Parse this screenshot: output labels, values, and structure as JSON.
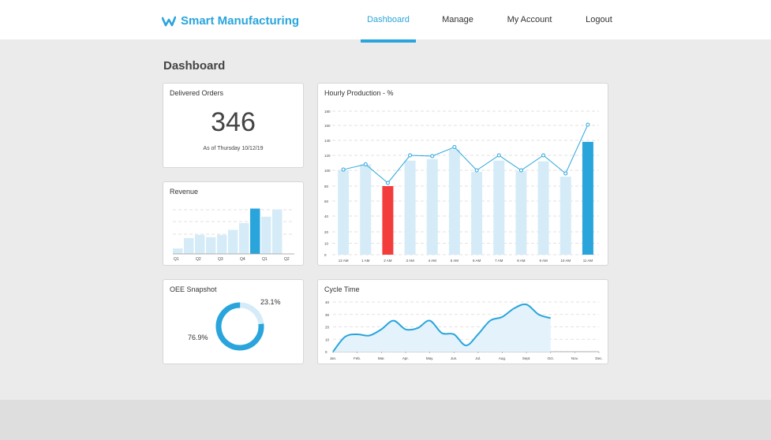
{
  "header": {
    "brand_title": "Smart Manufacturing",
    "nav": [
      {
        "label": "Dashboard",
        "active": true
      },
      {
        "label": "Manage",
        "active": false
      },
      {
        "label": "My Account",
        "active": false
      },
      {
        "label": "Logout",
        "active": false
      }
    ],
    "accent_color": "#29a5dc"
  },
  "page_title": "Dashboard",
  "delivered_orders": {
    "title": "Delivered Orders",
    "value": "346",
    "subtext": "As of Thursday 10/12/19"
  },
  "revenue": {
    "title": "Revenue"
  },
  "oee": {
    "title": "OEE Snapshot",
    "pct_a": "23.1%",
    "pct_b": "76.9%"
  },
  "hourly": {
    "title": "Hourly Production - %"
  },
  "cycle": {
    "title": "Cycle Time"
  },
  "chart_data": [
    {
      "type": "bar",
      "chart_id": "revenue",
      "title": "Revenue",
      "categories": [
        "Q1",
        "",
        "Q2",
        "",
        "Q3",
        "",
        "Q4",
        "",
        "Q1",
        "",
        "Q2"
      ],
      "x_tick_labels": [
        "Q1",
        "Q2",
        "Q3",
        "Q4",
        "Q1",
        "Q2"
      ],
      "values": [
        12,
        35,
        42,
        37,
        42,
        53,
        68,
        100,
        82,
        98,
        0
      ],
      "highlight_index": 7,
      "ylim": [
        0,
        120
      ],
      "grid": true
    },
    {
      "type": "bar",
      "chart_id": "hourly",
      "title": "Hourly Production - %",
      "categories": [
        "12 AM",
        "1 AM",
        "2 AM",
        "3 AM",
        "4 AM",
        "5 AM",
        "6 AM",
        "7 AM",
        "8 AM",
        "9 AM",
        "10 AM",
        "11 AM"
      ],
      "values": [
        100,
        108,
        80,
        113,
        115,
        128,
        98,
        113,
        99,
        112,
        92,
        138
      ],
      "line_values": [
        101,
        108,
        84,
        120,
        119,
        131,
        100,
        120,
        100,
        120,
        96,
        161
      ],
      "highlight_low_index": 2,
      "highlight_high_index": 11,
      "yticks": [
        0,
        10,
        20,
        40,
        60,
        80,
        100,
        120,
        140,
        160,
        180
      ],
      "ylim": [
        0,
        180
      ],
      "grid": true
    },
    {
      "type": "area",
      "chart_id": "cycle",
      "title": "Cycle Time",
      "categories": [
        "Jan.",
        "Feb.",
        "Mar.",
        "Apr.",
        "May.",
        "Jun.",
        "Jul.",
        "Aug.",
        "Sept.",
        "Oct.",
        "Nov.",
        "Dec."
      ],
      "x": [
        0,
        0.5,
        1,
        1.5,
        2,
        2.5,
        3,
        3.5,
        4,
        4.5,
        5,
        5.5,
        6,
        6.5,
        7,
        7.5,
        8,
        8.5,
        9
      ],
      "values": [
        0,
        12,
        14,
        13,
        18,
        25,
        18,
        19,
        25,
        15,
        14,
        5,
        14,
        25,
        28,
        35,
        38,
        30,
        27
      ],
      "yticks": [
        0,
        10,
        20,
        30,
        40
      ],
      "ylim": [
        0,
        40
      ],
      "grid": true
    },
    {
      "type": "pie",
      "chart_id": "oee",
      "title": "OEE Snapshot",
      "labels": [
        "23.1%",
        "76.9%"
      ],
      "values": [
        23.1,
        76.9
      ],
      "colors": [
        "#d5ecf8",
        "#29a5dc"
      ]
    }
  ]
}
